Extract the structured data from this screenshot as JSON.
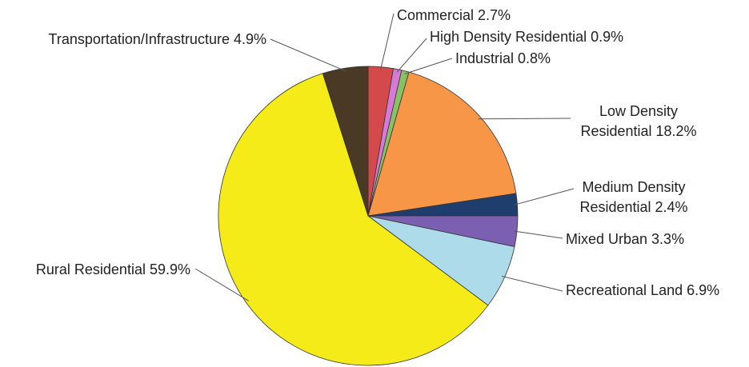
{
  "chart_data": {
    "type": "pie",
    "title": "",
    "start_angle_deg": 0,
    "direction": "clockwise_from_top",
    "slices": [
      {
        "label": "Commercial",
        "value": 2.7,
        "text": "Commercial 2.7%",
        "color": "#d44a4a"
      },
      {
        "label": "High Density Residential",
        "value": 0.9,
        "text": "High Density Residential 0.9%",
        "color": "#d77ad7"
      },
      {
        "label": "Industrial",
        "value": 0.8,
        "text": "Industrial 0.8%",
        "color": "#88c264"
      },
      {
        "label": "Low Density Residential",
        "value": 18.2,
        "text": [
          "Low Density",
          "Residential 18.2%"
        ],
        "color": "#f79646"
      },
      {
        "label": "Medium Density Residential",
        "value": 2.4,
        "text": [
          "Medium Density",
          "Residential 2.4%"
        ],
        "color": "#1f3e6e"
      },
      {
        "label": "Mixed Urban",
        "value": 3.3,
        "text": "Mixed Urban 3.3%",
        "color": "#7b5fb1"
      },
      {
        "label": "Recreational Land",
        "value": 6.9,
        "text": "Recreational Land 6.9%",
        "color": "#aedbea"
      },
      {
        "label": "Rural Residential",
        "value": 59.9,
        "text": "Rural Residential 59.9%",
        "color": "#f5eb18"
      },
      {
        "label": "Transportation/Infrastructure",
        "value": 4.9,
        "text": "Transportation/Infrastructure 4.9%",
        "color": "#4a3a25"
      }
    ]
  }
}
